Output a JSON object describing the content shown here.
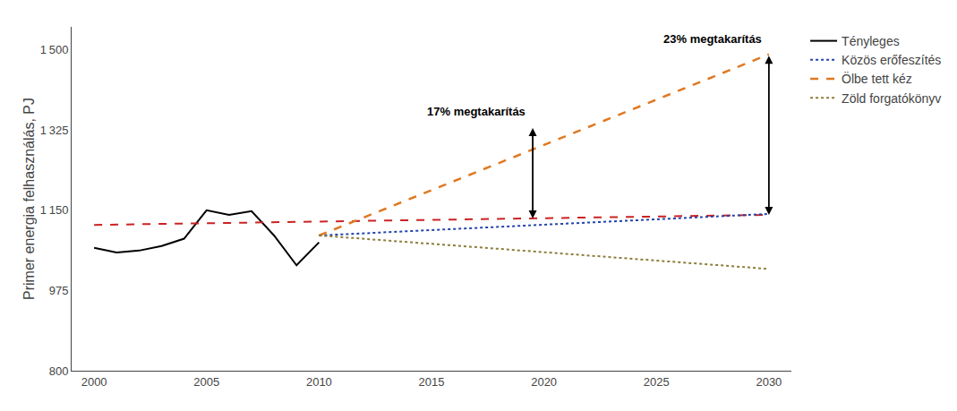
{
  "chart_data": {
    "type": "line",
    "ylabel": "Primer energia felhasználás, PJ",
    "xlim": [
      1999,
      2031
    ],
    "ylim": [
      800,
      1550
    ],
    "xticks": [
      2000,
      2005,
      2010,
      2015,
      2020,
      2025,
      2030
    ],
    "yticks": [
      800,
      975,
      {
        "value": 1150,
        "label": "1 150"
      },
      {
        "value": 1325,
        "label": "1 325"
      },
      {
        "value": 1500,
        "label": "1 500"
      }
    ],
    "grid": false,
    "legend": "right",
    "series": [
      {
        "name": "Tényleges",
        "color": "#000000",
        "line_style": "solid",
        "x": [
          2000,
          2001,
          2002,
          2003,
          2004,
          2005,
          2006,
          2007,
          2008,
          2009,
          2010
        ],
        "values": [
          1068,
          1058,
          1062,
          1072,
          1088,
          1150,
          1140,
          1148,
          1095,
          1030,
          1080
        ]
      },
      {
        "color": "#cc2222",
        "line_style": "dashed",
        "x": [
          2000,
          2030
        ],
        "values": [
          1118,
          1140
        ]
      },
      {
        "name": "Közös erőfeszítés",
        "color": "#2244aa",
        "line_style": "dotted",
        "x": [
          2010,
          2030
        ],
        "values": [
          1095,
          1142
        ]
      },
      {
        "name": "Ölbe tett kéz",
        "color": "#e07820",
        "line_style": "dashed",
        "x": [
          2010,
          2030
        ],
        "values": [
          1095,
          1490
        ]
      },
      {
        "name": "Zöld forgatókönyv",
        "color": "#8b7d3a",
        "line_style": "dotted",
        "x": [
          2010,
          2030
        ],
        "values": [
          1095,
          1022
        ]
      }
    ],
    "annotations": [
      {
        "text": "17% megtakarítás",
        "x": 2019.5,
        "y_top": 1332,
        "y_bottom": 1132
      },
      {
        "text": "23% megtakarítás",
        "x": 2030,
        "y_top": 1490,
        "y_bottom": 1140
      }
    ]
  }
}
